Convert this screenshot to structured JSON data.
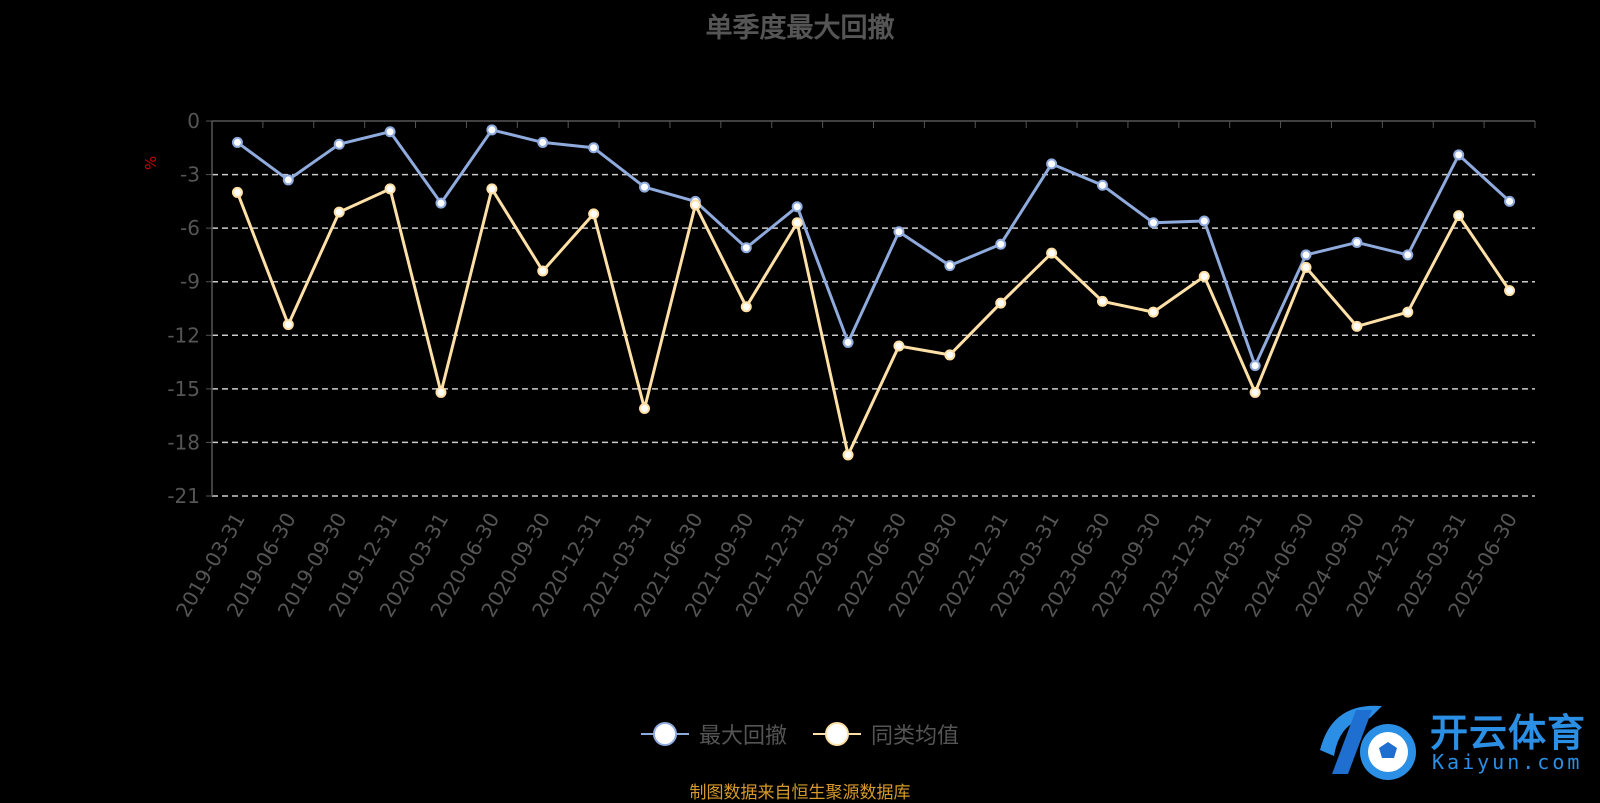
{
  "title": "单季度最大回撤",
  "source": "制图数据来自恒生聚源数据库",
  "logo": {
    "name": "开云体育",
    "domain": "Kaiyun.com"
  },
  "colors": {
    "series1": "#8faadc",
    "series2": "#ffe0a6",
    "grid": "#cccccc",
    "axis": "#555555",
    "unit": "#cc0000",
    "source": "#d69a2a"
  },
  "chart_data": {
    "type": "line",
    "title": "单季度最大回撤",
    "ylabel": "%",
    "ylim": [
      -21,
      0
    ],
    "yticks": [
      0,
      -3,
      -6,
      -9,
      -12,
      -15,
      -18,
      -21
    ],
    "grid": true,
    "legend_position": "bottom",
    "categories": [
      "2019-03-31",
      "2019-06-30",
      "2019-09-30",
      "2019-12-31",
      "2020-03-31",
      "2020-06-30",
      "2020-09-30",
      "2020-12-31",
      "2021-03-31",
      "2021-06-30",
      "2021-09-30",
      "2021-12-31",
      "2022-03-31",
      "2022-06-30",
      "2022-09-30",
      "2022-12-31",
      "2023-03-31",
      "2023-06-30",
      "2023-09-30",
      "2023-12-31",
      "2024-03-31",
      "2024-06-30",
      "2024-09-30",
      "2024-12-31",
      "2025-03-31",
      "2025-06-30"
    ],
    "series": [
      {
        "name": "最大回撤",
        "values": [
          -1.2,
          -3.3,
          -1.3,
          -0.6,
          -4.6,
          -0.5,
          -1.2,
          -1.5,
          -3.7,
          -4.5,
          -7.1,
          -4.8,
          -12.4,
          -6.2,
          -8.1,
          -6.9,
          -2.4,
          -3.6,
          -5.7,
          -5.6,
          -13.7,
          -7.5,
          -6.8,
          -7.5,
          -1.9,
          -4.5
        ]
      },
      {
        "name": "同类均值",
        "values": [
          -4.0,
          -11.4,
          -5.1,
          -3.8,
          -15.2,
          -3.8,
          -8.4,
          -5.2,
          -16.1,
          -4.7,
          -10.4,
          -5.7,
          -18.7,
          -12.6,
          -13.1,
          -10.2,
          -7.4,
          -10.1,
          -10.7,
          -8.7,
          -15.2,
          -8.2,
          -11.5,
          -10.7,
          -5.3,
          -9.5
        ]
      }
    ]
  }
}
